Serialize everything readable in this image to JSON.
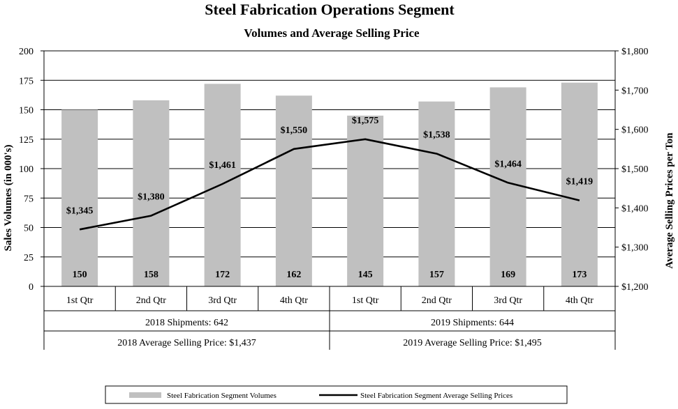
{
  "chart_data": {
    "type": "bar",
    "title": "Steel Fabrication Operations Segment",
    "subtitle": "Volumes and Average Selling Price",
    "ylabel": "Sales Volumes (in 000's)",
    "y2label": "Average Selling Prices per Ton",
    "ylim": [
      0,
      200
    ],
    "y_ticks": [
      0,
      25,
      50,
      75,
      100,
      125,
      150,
      175,
      200
    ],
    "y2lim": [
      1200,
      1800
    ],
    "y2_ticks": [
      "$1,200",
      "$1,300",
      "$1,400",
      "$1,500",
      "$1,600",
      "$1,700",
      "$1,800"
    ],
    "grid": "horizontal",
    "legend_position": "bottom",
    "categories": [
      "1st Qtr",
      "2nd Qtr",
      "3rd Qtr",
      "4th Qtr",
      "1st Qtr",
      "2nd Qtr",
      "3rd Qtr",
      "4th Qtr"
    ],
    "groups": [
      {
        "shipments": "2018 Shipments: 642",
        "avg_price": "2018 Average Selling Price: $1,437"
      },
      {
        "shipments": "2019 Shipments: 644",
        "avg_price": "2019 Average Selling Price: $1,495"
      }
    ],
    "series": [
      {
        "name": "Steel Fabrication Segment Volumes",
        "type": "bar",
        "axis": "left",
        "color": "#c0c0c0",
        "values": [
          150,
          158,
          172,
          162,
          145,
          157,
          169,
          173
        ],
        "labels": [
          "150",
          "158",
          "172",
          "162",
          "145",
          "157",
          "169",
          "173"
        ]
      },
      {
        "name": "Steel Fabrication Segment Average Selling Prices",
        "type": "line",
        "axis": "right",
        "color": "#000000",
        "values": [
          1345,
          1380,
          1461,
          1550,
          1575,
          1538,
          1464,
          1419
        ],
        "labels": [
          "$1,345",
          "$1,380",
          "$1,461",
          "$1,550",
          "$1,575",
          "$1,538",
          "$1,464",
          "$1,419"
        ]
      }
    ]
  }
}
